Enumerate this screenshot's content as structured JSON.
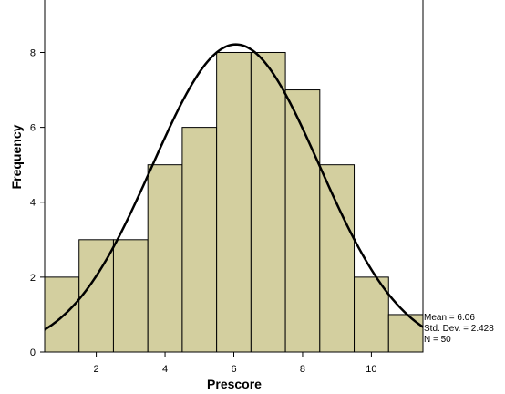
{
  "chart_data": {
    "type": "bar",
    "subtype": "histogram",
    "xlabel": "Prescore",
    "ylabel": "Frequency",
    "bins": [
      {
        "x0": 0.5,
        "x1": 1.5,
        "count": 2
      },
      {
        "x0": 1.5,
        "x1": 2.5,
        "count": 3
      },
      {
        "x0": 2.5,
        "x1": 3.5,
        "count": 3
      },
      {
        "x0": 3.5,
        "x1": 4.5,
        "count": 5
      },
      {
        "x0": 4.5,
        "x1": 5.5,
        "count": 6
      },
      {
        "x0": 5.5,
        "x1": 6.5,
        "count": 8
      },
      {
        "x0": 6.5,
        "x1": 7.5,
        "count": 8
      },
      {
        "x0": 7.5,
        "x1": 8.5,
        "count": 7
      },
      {
        "x0": 8.5,
        "x1": 9.5,
        "count": 5
      },
      {
        "x0": 9.5,
        "x1": 10.5,
        "count": 2
      },
      {
        "x0": 10.5,
        "x1": 11.5,
        "count": 1
      }
    ],
    "xticks": [
      2,
      4,
      6,
      8,
      10
    ],
    "yticks": [
      0,
      2,
      4,
      6,
      8
    ],
    "xlim": [
      0.5,
      11.5
    ],
    "ylim": [
      0,
      9.4
    ],
    "grid": false,
    "normal_curve": {
      "mean": 6.06,
      "std": 2.428,
      "n": 50,
      "bin_width": 1
    },
    "colors": {
      "bar_fill": "#d3cf9f",
      "bar_stroke": "#000000",
      "curve": "#000000"
    },
    "stats": {
      "mean": "Mean = 6.06",
      "std": "Std. Dev. = 2.428",
      "n": "N = 50"
    }
  }
}
